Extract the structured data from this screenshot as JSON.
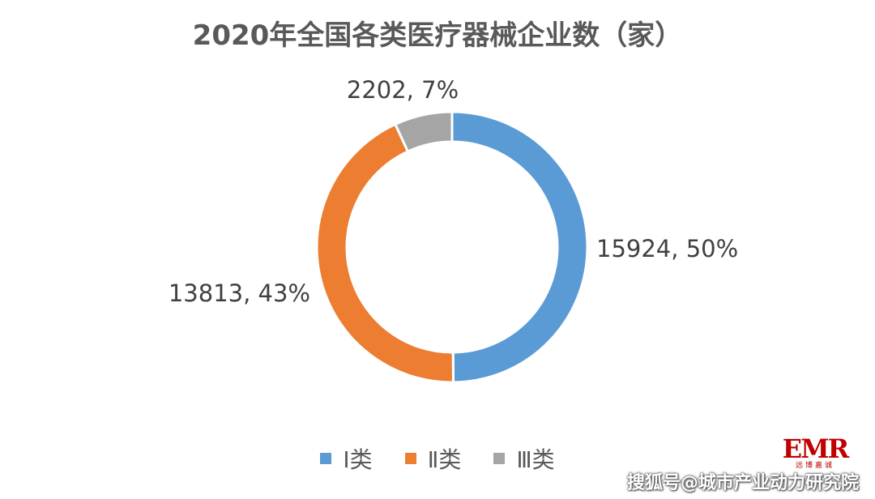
{
  "chart_data": {
    "type": "pie",
    "title": "2020年全国各类医疗器械企业数（家）",
    "categories": [
      "Ⅰ类",
      "Ⅱ类",
      "Ⅲ类"
    ],
    "values": [
      15924,
      13813,
      2202
    ],
    "percent_labels": [
      "50%",
      "43%",
      "7%"
    ],
    "data_labels": [
      "15924, 50%",
      "13813, 43%",
      "2202, 7%"
    ],
    "colors": [
      "#5B9BD5",
      "#ED7D31",
      "#A5A5A5"
    ],
    "donut": true,
    "legend_position": "bottom"
  },
  "logo": {
    "mark": "EMR",
    "subtitle": "远博嘉诚"
  },
  "watermark": {
    "text": "搜狐号@城市产业动力研究院"
  }
}
